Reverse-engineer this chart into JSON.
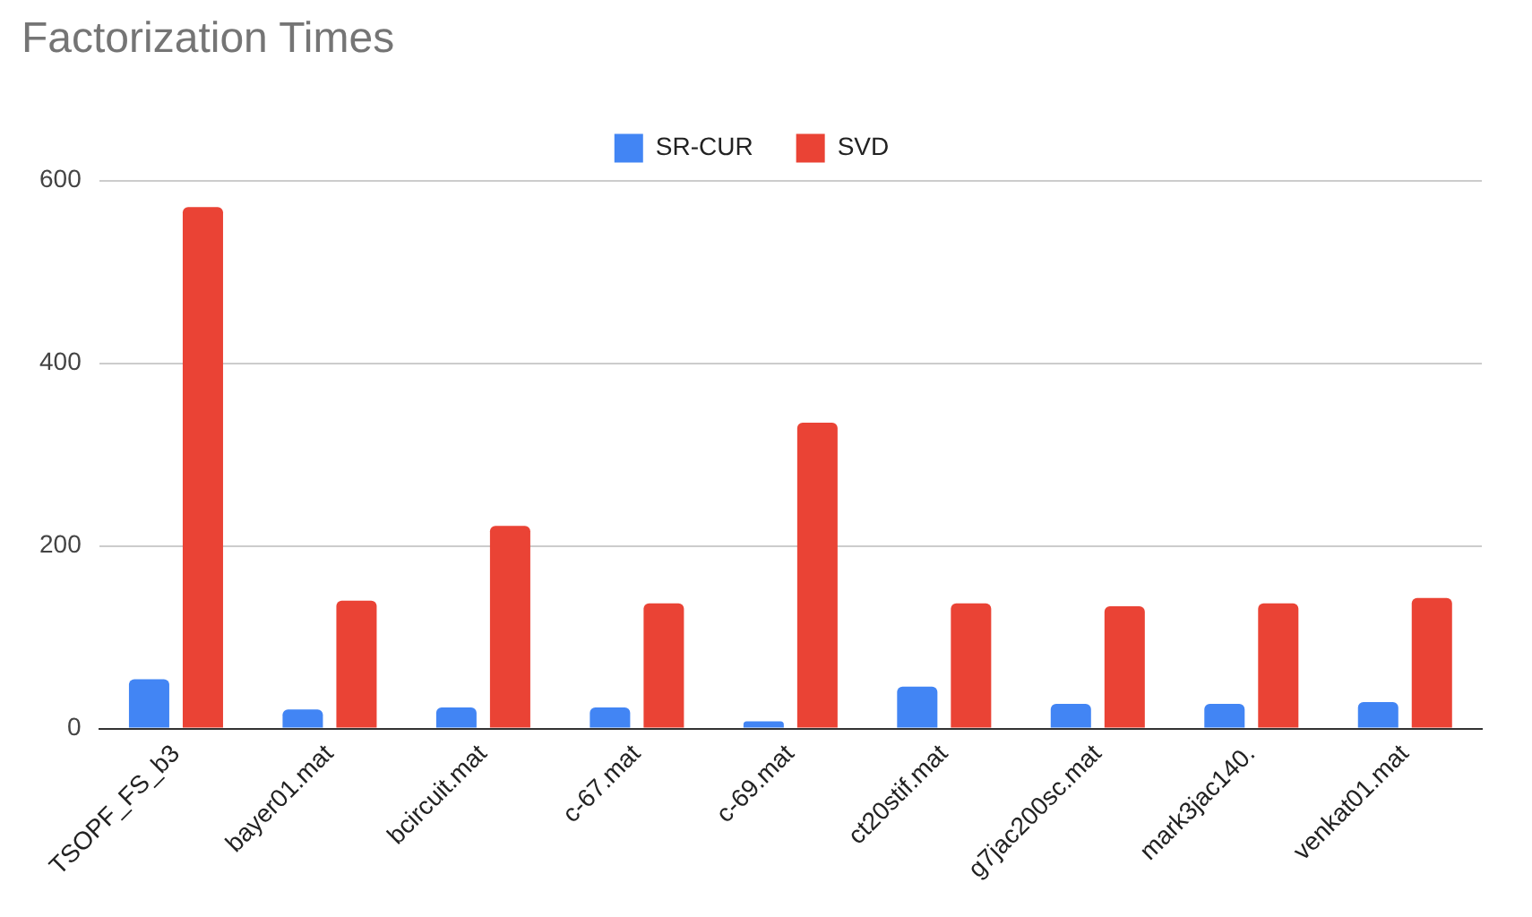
{
  "chart_data": {
    "type": "bar",
    "title": "Factorization Times",
    "categories": [
      "TSOPF_FS_b3",
      "bayer01.mat",
      "bcircuit.mat",
      "c-67.mat",
      "c-69.mat",
      "ct20stif.mat",
      "g7jac200sc.mat",
      "mark3jac140.",
      "venkat01.mat"
    ],
    "series": [
      {
        "name": "SR-CUR",
        "color": "#4285f4",
        "values": [
          54,
          21,
          23,
          23,
          8,
          46,
          27,
          27,
          29
        ]
      },
      {
        "name": "SVD",
        "color": "#ea4335",
        "values": [
          571,
          140,
          222,
          137,
          335,
          137,
          134,
          137,
          143
        ]
      }
    ],
    "ylim": [
      0,
      600
    ],
    "yticks": [
      0,
      200,
      400,
      600
    ],
    "grid": "y",
    "legend": "top"
  }
}
